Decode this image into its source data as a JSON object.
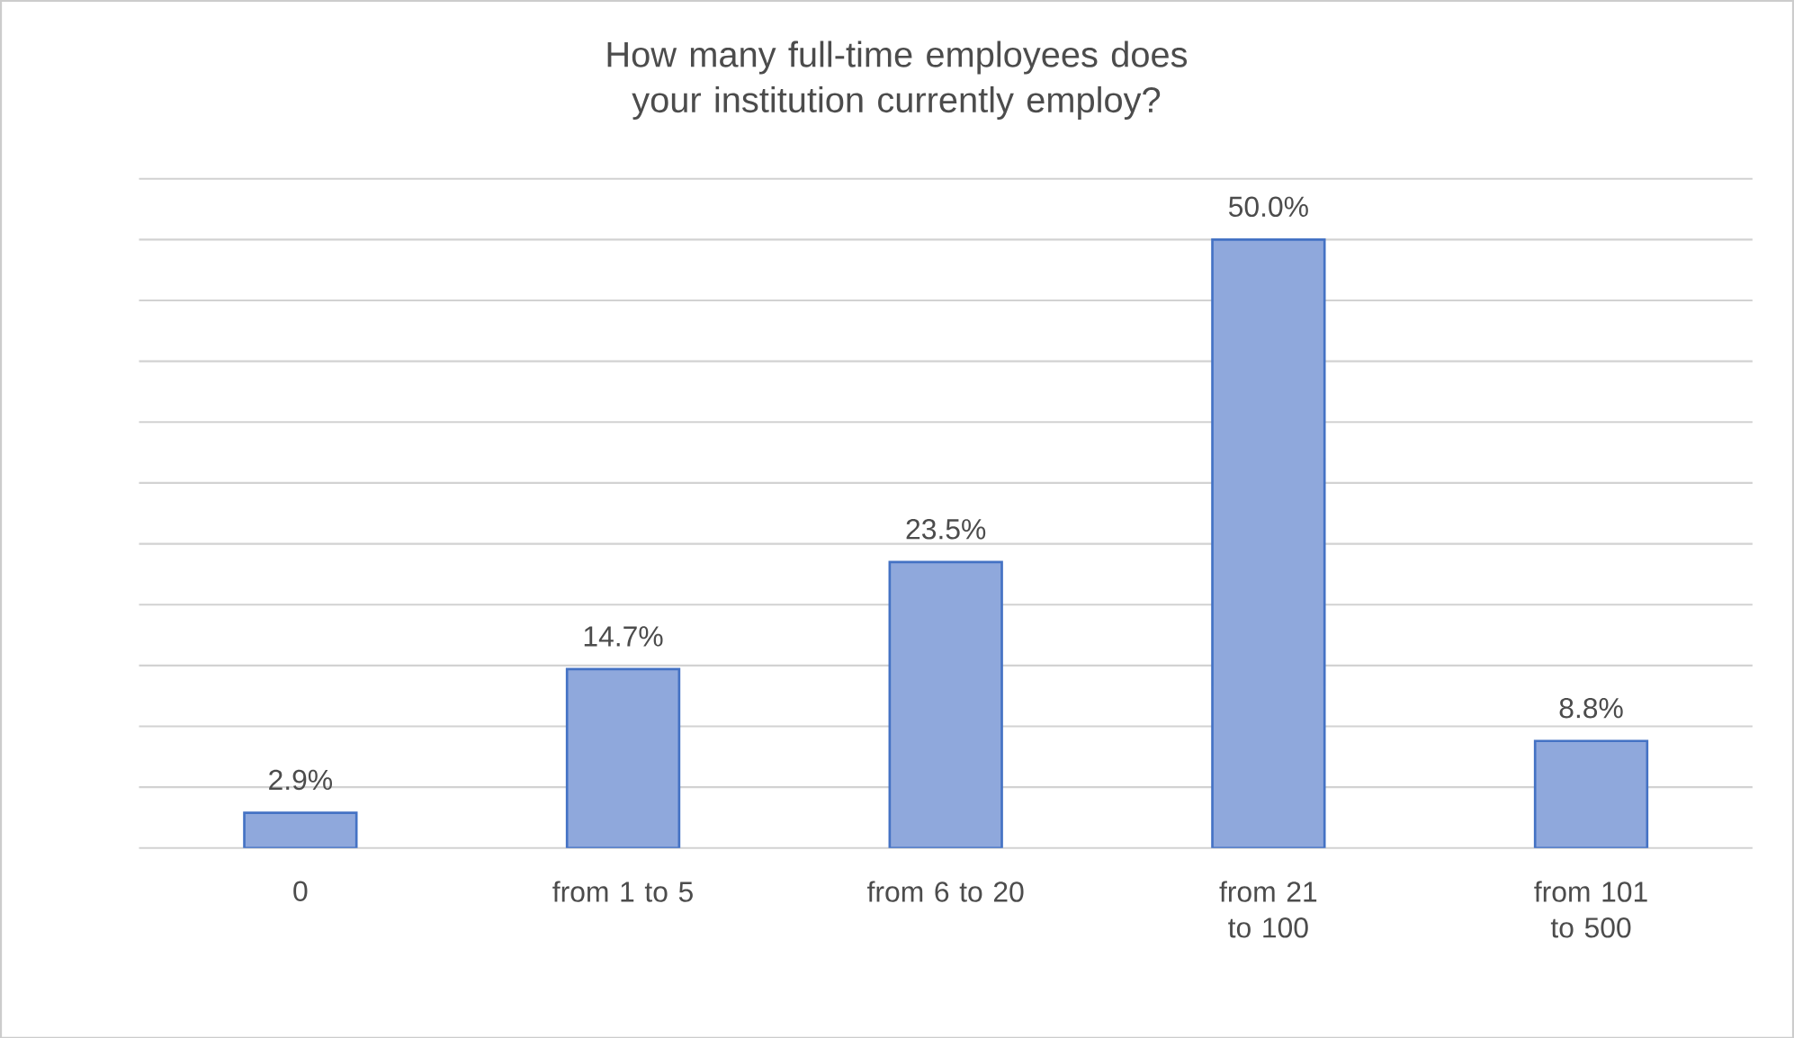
{
  "chart_data": {
    "type": "bar",
    "title": "How many full-time employees does your institution currently employ?",
    "categories": [
      "0",
      "from 1 to 5",
      "from 6 to 20",
      "from 21 to 100",
      "from 101 to 500"
    ],
    "values": [
      2.9,
      14.7,
      23.5,
      50.0,
      8.8
    ],
    "value_labels": [
      "2.9%",
      "14.7%",
      "23.5%",
      "50.0%",
      "8.8%"
    ],
    "color": "#8fa8dc",
    "grid": "y",
    "tick_labels": "x"
  }
}
